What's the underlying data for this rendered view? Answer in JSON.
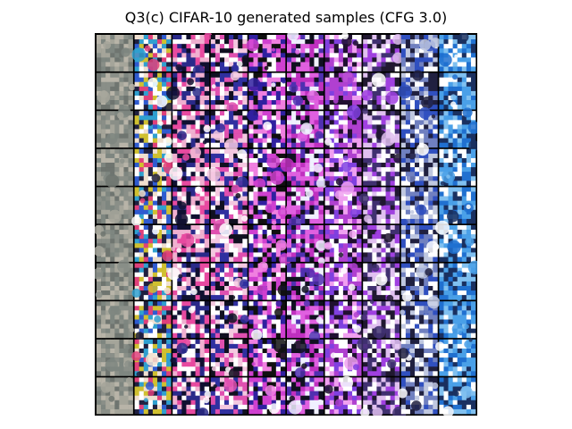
{
  "figure": {
    "title": "Q3(c) CIFAR-10 generated samples (CFG 3.0)",
    "grid_rows": 10,
    "grid_cols": 10,
    "border_color": "#000000",
    "background_color": "#ffffff"
  },
  "columns": [
    {
      "style": "gray-noise",
      "colors": [
        "#8a8f88",
        "#a5a59a",
        "#6f7570",
        "#b8b4a8",
        "#7e8680"
      ]
    },
    {
      "style": "multicolor-noise",
      "colors": [
        "#ffffff",
        "#2f5bd0",
        "#e0407a",
        "#f0e0d0",
        "#30a0d0",
        "#d0c030",
        "#202040"
      ]
    },
    {
      "style": "pink-white-noise",
      "colors": [
        "#ffffff",
        "#e84aa0",
        "#2a2a8a",
        "#f0b0d0",
        "#101030"
      ]
    },
    {
      "style": "pink-white-noise",
      "colors": [
        "#ffffff",
        "#e050b0",
        "#3030a0",
        "#101020",
        "#f4c8e0"
      ]
    },
    {
      "style": "magenta-noise",
      "colors": [
        "#d040d0",
        "#ffffff",
        "#3020a0",
        "#101010",
        "#f080e0"
      ]
    },
    {
      "style": "magenta-dark",
      "colors": [
        "#c030c0",
        "#f0f0ff",
        "#101020",
        "#5030b0",
        "#e060e0"
      ]
    },
    {
      "style": "magenta-dots",
      "colors": [
        "#b040d0",
        "#ffffff",
        "#201030",
        "#8040e0",
        "#f0a0f0"
      ]
    },
    {
      "style": "violet-white",
      "colors": [
        "#ffffff",
        "#a040e0",
        "#403070",
        "#e0c0f0",
        "#201830"
      ]
    },
    {
      "style": "blue-white",
      "colors": [
        "#ffffff",
        "#3050c0",
        "#c0c8e0",
        "#202040",
        "#7080c0"
      ]
    },
    {
      "style": "sky-blue",
      "colors": [
        "#2070d0",
        "#4aa0e8",
        "#ffffff",
        "#1a3060",
        "#80c0f0"
      ]
    }
  ]
}
